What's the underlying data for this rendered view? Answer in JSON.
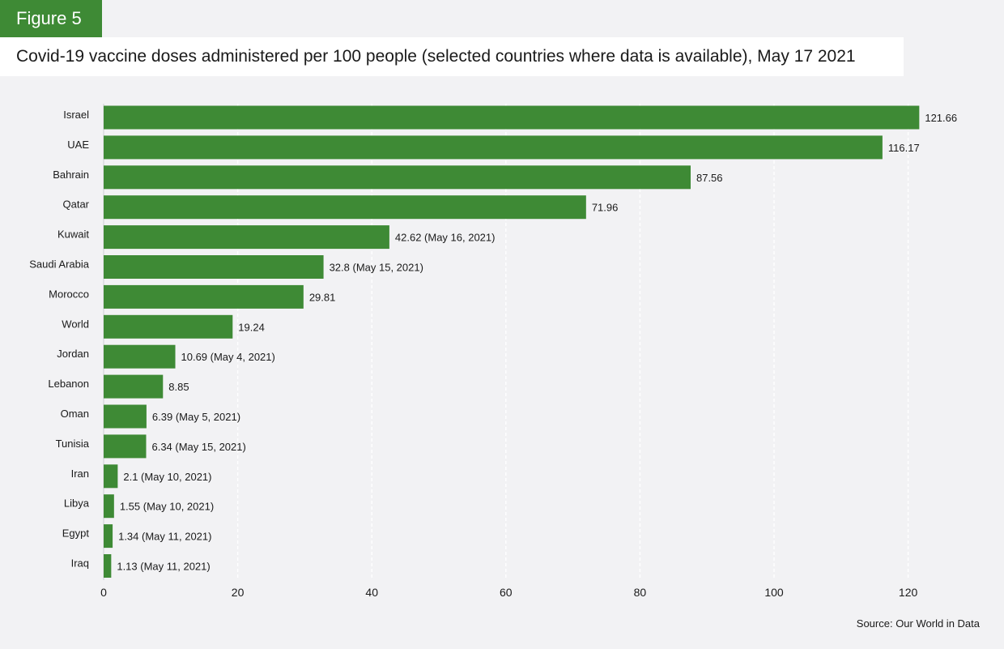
{
  "figure_label": "Figure 5",
  "title": "Covid-19 vaccine doses administered per 100 people (selected countries where data is available), May 17 2021",
  "source": "Source: Our World in Data",
  "colors": {
    "bar": "#3e8a35",
    "background": "#f2f2f4",
    "grid": "#ffffff",
    "text": "#1a1a1a"
  },
  "chart_data": {
    "type": "bar",
    "orientation": "horizontal",
    "categories": [
      "Israel",
      "UAE",
      "Bahrain",
      "Qatar",
      "Kuwait",
      "Saudi Arabia",
      "Morocco",
      "World",
      "Jordan",
      "Lebanon",
      "Oman",
      "Tunisia",
      "Iran",
      "Libya",
      "Egypt",
      "Iraq"
    ],
    "values": [
      121.66,
      116.17,
      87.56,
      71.96,
      42.62,
      32.8,
      29.81,
      19.24,
      10.69,
      8.85,
      6.39,
      6.34,
      2.1,
      1.55,
      1.34,
      1.13
    ],
    "labels": [
      "121.66",
      "116.17",
      "87.56",
      "71.96",
      "42.62 (May 16, 2021)",
      "32.8 (May 15, 2021)",
      "29.81",
      "19.24",
      "10.69 (May 4, 2021)",
      "8.85",
      "6.39 (May 5, 2021)",
      "6.34 (May 15, 2021)",
      "2.1 (May 10, 2021)",
      "1.55 (May 10, 2021)",
      "1.34 (May 11, 2021)",
      "1.13 (May 11, 2021)"
    ],
    "xlim": [
      0,
      120
    ],
    "xticks": [
      0,
      20,
      40,
      60,
      80,
      100,
      120
    ],
    "grid": "vertical dashed"
  }
}
